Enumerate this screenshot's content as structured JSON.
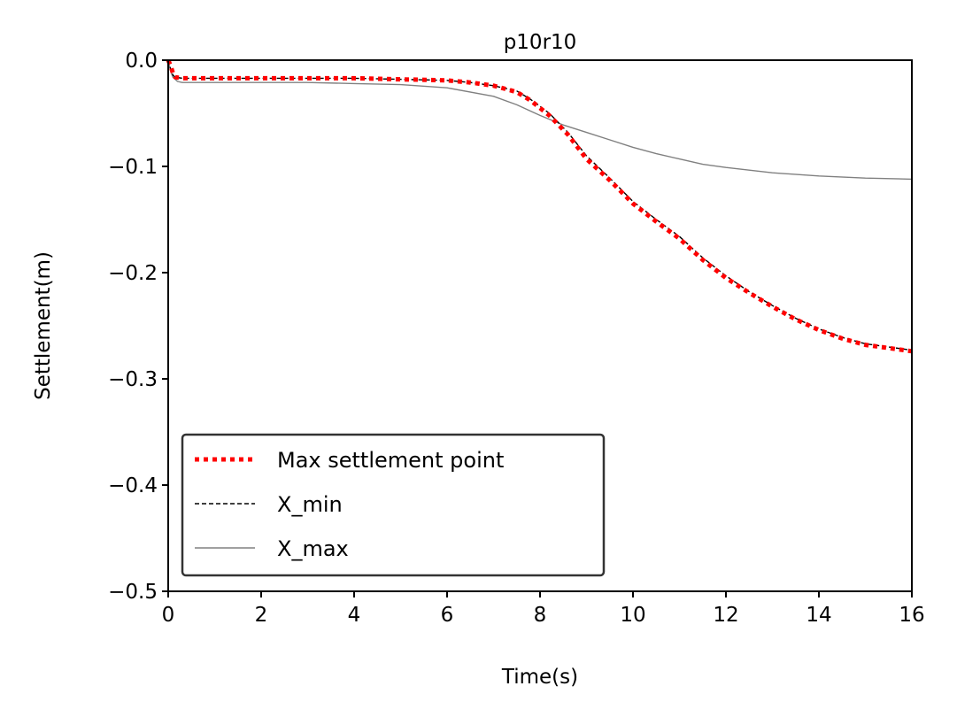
{
  "chart_data": {
    "type": "line",
    "title": "p10r10",
    "xlabel": "Time(s)",
    "ylabel": "Settlement(m)",
    "xlim": [
      0,
      16
    ],
    "ylim": [
      -0.5,
      0.0
    ],
    "xticks": [
      0,
      2,
      4,
      6,
      8,
      10,
      12,
      14,
      16
    ],
    "yticks": [
      0.0,
      -0.1,
      -0.2,
      -0.3,
      -0.4,
      -0.5
    ],
    "xtick_labels": [
      "0",
      "2",
      "4",
      "6",
      "8",
      "10",
      "12",
      "14",
      "16"
    ],
    "ytick_labels": [
      "0.0",
      "−0.1",
      "−0.2",
      "−0.3",
      "−0.4",
      "−0.5"
    ],
    "grid": false,
    "legend_position": "lower-left",
    "series": [
      {
        "name": "Max settlement point",
        "color": "#ff0000",
        "style": "dotted",
        "x": [
          0,
          0.05,
          0.1,
          0.15,
          0.3,
          1,
          2,
          3,
          4,
          5,
          6,
          6.5,
          7,
          7.5,
          7.8,
          8.2,
          8.6,
          9,
          9.5,
          10,
          10.5,
          11,
          11.5,
          12,
          12.5,
          13,
          13.5,
          14,
          14.5,
          15,
          15.5,
          16
        ],
        "y": [
          0.0,
          -0.005,
          -0.012,
          -0.016,
          -0.017,
          -0.017,
          -0.017,
          -0.017,
          -0.017,
          -0.018,
          -0.019,
          -0.021,
          -0.024,
          -0.03,
          -0.038,
          -0.052,
          -0.07,
          -0.093,
          -0.113,
          -0.135,
          -0.152,
          -0.168,
          -0.188,
          -0.205,
          -0.219,
          -0.232,
          -0.244,
          -0.254,
          -0.262,
          -0.268,
          -0.271,
          -0.274
        ]
      },
      {
        "name": "X_min",
        "color": "#000000",
        "style": "dashed",
        "x": [
          0,
          0.05,
          0.1,
          0.15,
          0.3,
          1,
          2,
          3,
          4,
          5,
          6,
          6.5,
          7,
          7.5,
          7.8,
          8.2,
          8.6,
          9,
          9.5,
          10,
          10.5,
          11,
          11.5,
          12,
          12.5,
          13,
          13.5,
          14,
          14.5,
          15,
          15.5,
          16
        ],
        "y": [
          0.0,
          -0.008,
          -0.014,
          -0.016,
          -0.017,
          -0.017,
          -0.017,
          -0.017,
          -0.017,
          -0.018,
          -0.019,
          -0.021,
          -0.024,
          -0.029,
          -0.037,
          -0.05,
          -0.068,
          -0.09,
          -0.111,
          -0.133,
          -0.15,
          -0.166,
          -0.186,
          -0.203,
          -0.218,
          -0.231,
          -0.243,
          -0.253,
          -0.261,
          -0.267,
          -0.27,
          -0.273
        ]
      },
      {
        "name": "X_max",
        "color": "#808080",
        "style": "solid",
        "x": [
          0,
          0.05,
          0.1,
          0.2,
          0.3,
          1,
          2,
          3,
          4,
          5,
          6,
          7,
          7.5,
          8,
          8.5,
          9,
          9.5,
          10,
          10.5,
          11,
          11.5,
          12,
          13,
          14,
          15,
          16
        ],
        "y": [
          0.0,
          -0.01,
          -0.016,
          -0.02,
          -0.021,
          -0.021,
          -0.021,
          -0.021,
          -0.022,
          -0.023,
          -0.026,
          -0.034,
          -0.042,
          -0.052,
          -0.061,
          -0.068,
          -0.075,
          -0.082,
          -0.088,
          -0.093,
          -0.098,
          -0.101,
          -0.106,
          -0.109,
          -0.111,
          -0.112
        ]
      }
    ]
  }
}
